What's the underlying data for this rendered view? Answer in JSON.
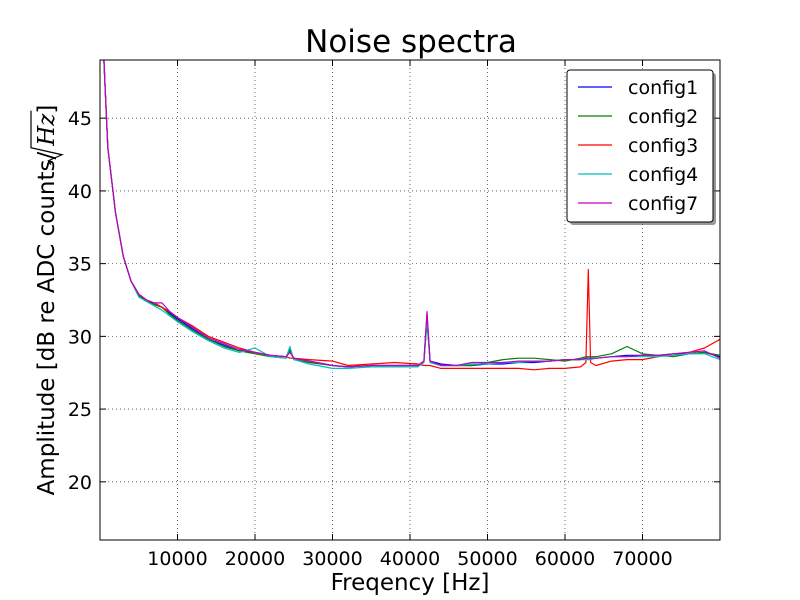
{
  "chart_data": {
    "type": "line",
    "title": "Noise spectra",
    "xlabel": "Freqency [Hz]",
    "ylabel_text": "Amplitude [dB re ADC counts/",
    "ylabel_math": "Hz",
    "ylabel_close": "]",
    "xlim": [
      0,
      80000
    ],
    "ylim": [
      16,
      49
    ],
    "xticks": [
      10000,
      20000,
      30000,
      40000,
      50000,
      60000,
      70000
    ],
    "xtick_labels": [
      "10000",
      "20000",
      "30000",
      "40000",
      "50000",
      "60000",
      "70000"
    ],
    "yticks": [
      20,
      25,
      30,
      35,
      40,
      45
    ],
    "ytick_labels": [
      "20",
      "25",
      "30",
      "35",
      "40",
      "45"
    ],
    "grid": true,
    "legend_position": "top-right",
    "x": [
      500,
      1000,
      2000,
      3000,
      4000,
      5000,
      6000,
      7000,
      8000,
      9000,
      10000,
      12000,
      14000,
      16000,
      18000,
      20000,
      22000,
      24000,
      24500,
      25000,
      27000,
      30000,
      32000,
      35000,
      38000,
      41000,
      41800,
      42200,
      42600,
      44000,
      46000,
      48000,
      50000,
      52000,
      54000,
      56000,
      58000,
      60000,
      62000,
      62700,
      63000,
      63300,
      64000,
      66000,
      68000,
      70000,
      72000,
      74000,
      76000,
      78000,
      80000
    ],
    "series": [
      {
        "name": "config1",
        "color": "#0000ff",
        "values": [
          49,
          43,
          38.5,
          35.5,
          33.8,
          32.9,
          32.5,
          32.2,
          32.0,
          31.6,
          31.2,
          30.5,
          29.8,
          29.4,
          29.0,
          28.9,
          28.7,
          28.6,
          29.0,
          28.5,
          28.3,
          28.0,
          27.9,
          28.0,
          28.0,
          28.0,
          28.3,
          31.5,
          28.3,
          28.1,
          28.0,
          28.0,
          28.1,
          28.1,
          28.2,
          28.2,
          28.3,
          28.4,
          28.4,
          28.5,
          28.5,
          28.5,
          28.5,
          28.6,
          28.7,
          28.7,
          28.7,
          28.8,
          28.8,
          28.9,
          28.6
        ]
      },
      {
        "name": "config2",
        "color": "#008000",
        "values": [
          49,
          43,
          38.5,
          35.5,
          33.8,
          32.8,
          32.4,
          32.2,
          32.0,
          31.5,
          31.1,
          30.4,
          29.8,
          29.3,
          29.0,
          28.8,
          28.6,
          28.5,
          29.1,
          28.4,
          28.2,
          28.0,
          27.9,
          28.0,
          28.0,
          28.0,
          28.2,
          31.0,
          28.2,
          28.0,
          28.0,
          28.0,
          28.2,
          28.4,
          28.5,
          28.5,
          28.4,
          28.3,
          28.5,
          28.6,
          28.6,
          28.6,
          28.6,
          28.8,
          29.3,
          28.8,
          28.7,
          28.6,
          28.8,
          28.9,
          28.7
        ]
      },
      {
        "name": "config3",
        "color": "#ff0000",
        "values": [
          49,
          43,
          38.5,
          35.5,
          33.8,
          32.9,
          32.5,
          32.3,
          32.0,
          31.7,
          31.3,
          30.7,
          30.0,
          29.6,
          29.2,
          28.9,
          28.7,
          28.6,
          28.5,
          28.5,
          28.4,
          28.3,
          28.0,
          28.1,
          28.2,
          28.1,
          28.0,
          28.0,
          28.0,
          27.8,
          27.8,
          27.8,
          27.8,
          27.8,
          27.8,
          27.7,
          27.8,
          27.8,
          27.9,
          28.2,
          34.6,
          28.2,
          28.0,
          28.3,
          28.4,
          28.4,
          28.6,
          28.8,
          28.9,
          29.2,
          29.8
        ]
      },
      {
        "name": "config4",
        "color": "#00bfbf",
        "values": [
          49,
          43,
          38.5,
          35.5,
          33.8,
          32.7,
          32.4,
          32.1,
          31.8,
          31.4,
          31.0,
          30.3,
          29.7,
          29.2,
          28.9,
          29.2,
          28.6,
          28.5,
          29.3,
          28.4,
          28.1,
          27.8,
          27.8,
          27.9,
          27.9,
          27.9,
          28.2,
          31.2,
          28.2,
          28.0,
          28.0,
          28.1,
          28.1,
          28.2,
          28.2,
          28.3,
          28.3,
          28.4,
          28.4,
          28.4,
          28.4,
          28.4,
          28.5,
          28.6,
          28.6,
          28.6,
          28.6,
          28.7,
          28.8,
          28.8,
          28.4
        ]
      },
      {
        "name": "config7",
        "color": "#bf00bf",
        "values": [
          49,
          43,
          38.5,
          35.5,
          33.8,
          32.9,
          32.5,
          32.3,
          32.3,
          31.7,
          31.3,
          30.6,
          29.9,
          29.5,
          29.1,
          28.9,
          28.7,
          28.6,
          28.9,
          28.5,
          28.3,
          28.0,
          27.9,
          28.0,
          28.0,
          28.0,
          28.3,
          31.7,
          28.3,
          28.0,
          28.0,
          28.2,
          28.2,
          28.2,
          28.3,
          28.3,
          28.3,
          28.4,
          28.4,
          28.5,
          28.5,
          28.5,
          28.5,
          28.6,
          28.6,
          28.7,
          28.7,
          28.8,
          28.9,
          29.0,
          28.5
        ]
      }
    ]
  }
}
